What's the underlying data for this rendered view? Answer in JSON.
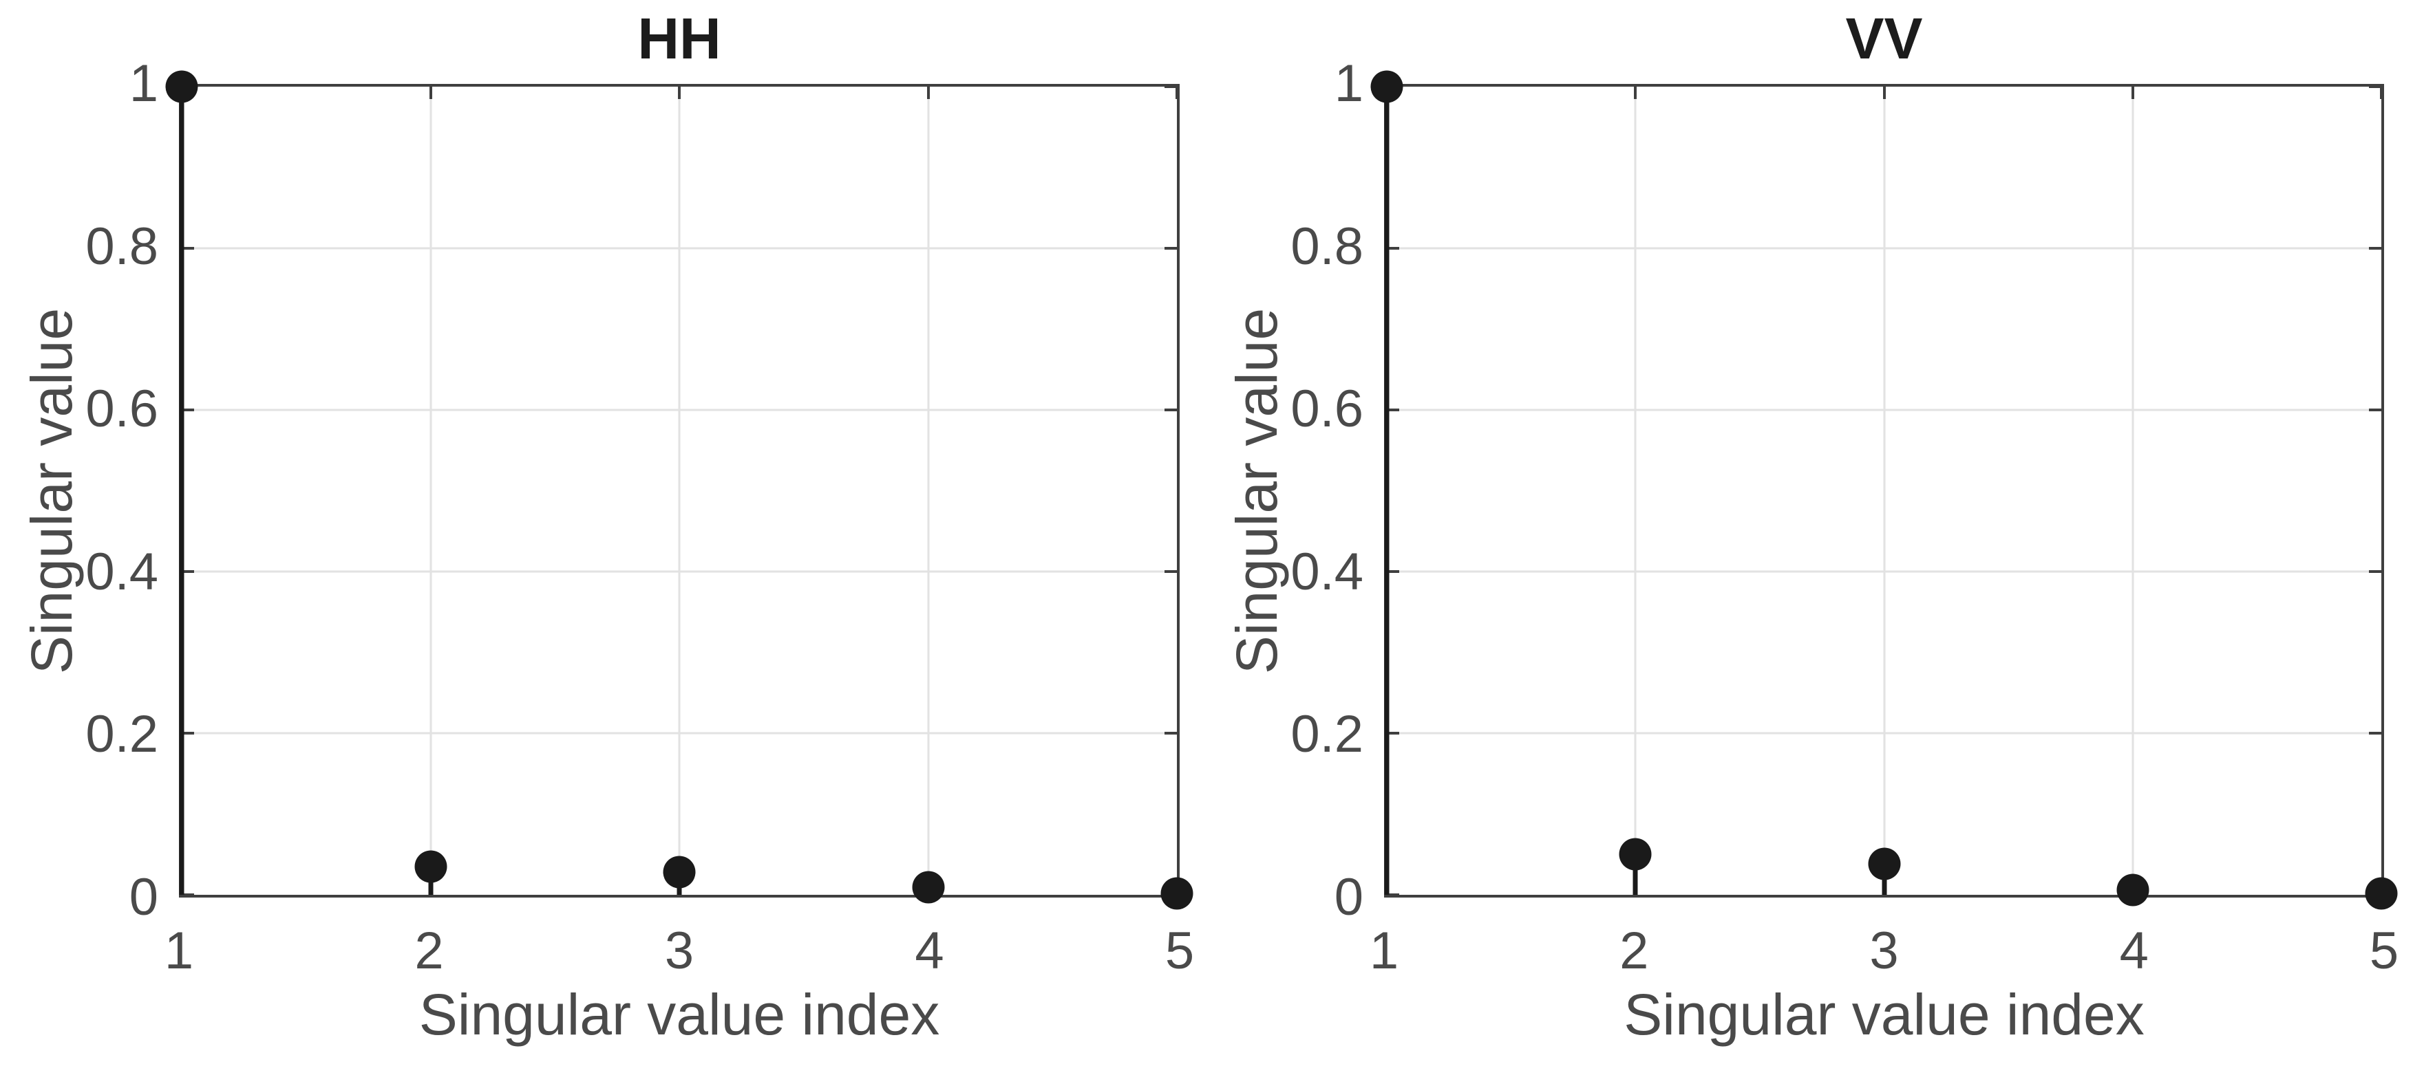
{
  "figure": {
    "background": "#ffffff",
    "axis_color": "#3f3f3f",
    "grid_color": "#e2e2e2",
    "text_color": "#4a4a4a",
    "title_color": "#1c1c1c",
    "stem_color": "#1a1a1a",
    "marker_color": "#1a1a1a"
  },
  "chart_data": [
    {
      "type": "stem",
      "title": "HH",
      "xlabel": "Singular value index",
      "ylabel": "Singular value",
      "x": [
        1,
        2,
        3,
        4,
        5
      ],
      "values": [
        1.0,
        0.035,
        0.028,
        0.009,
        0.002
      ],
      "xlim": [
        1,
        5
      ],
      "ylim": [
        0,
        1
      ],
      "xticks": [
        1,
        2,
        3,
        4,
        5
      ],
      "xtick_labels": [
        "1",
        "2",
        "3",
        "4",
        "5"
      ],
      "yticks": [
        0,
        0.2,
        0.4,
        0.6,
        0.8,
        1
      ],
      "ytick_labels": [
        "0",
        "0.2",
        "0.4",
        "0.6",
        "0.8",
        "1"
      ],
      "grid": true,
      "box": true,
      "legend": null
    },
    {
      "type": "stem",
      "title": "VV",
      "xlabel": "Singular value index",
      "ylabel": "Singular value",
      "x": [
        1,
        2,
        3,
        4,
        5
      ],
      "values": [
        1.0,
        0.05,
        0.038,
        0.006,
        0.002
      ],
      "xlim": [
        1,
        5
      ],
      "ylim": [
        0,
        1
      ],
      "xticks": [
        1,
        2,
        3,
        4,
        5
      ],
      "xtick_labels": [
        "1",
        "2",
        "3",
        "4",
        "5"
      ],
      "yticks": [
        0,
        0.2,
        0.4,
        0.6,
        0.8,
        1
      ],
      "ytick_labels": [
        "0",
        "0.2",
        "0.4",
        "0.6",
        "0.8",
        "1"
      ],
      "grid": true,
      "box": true,
      "legend": null
    }
  ]
}
